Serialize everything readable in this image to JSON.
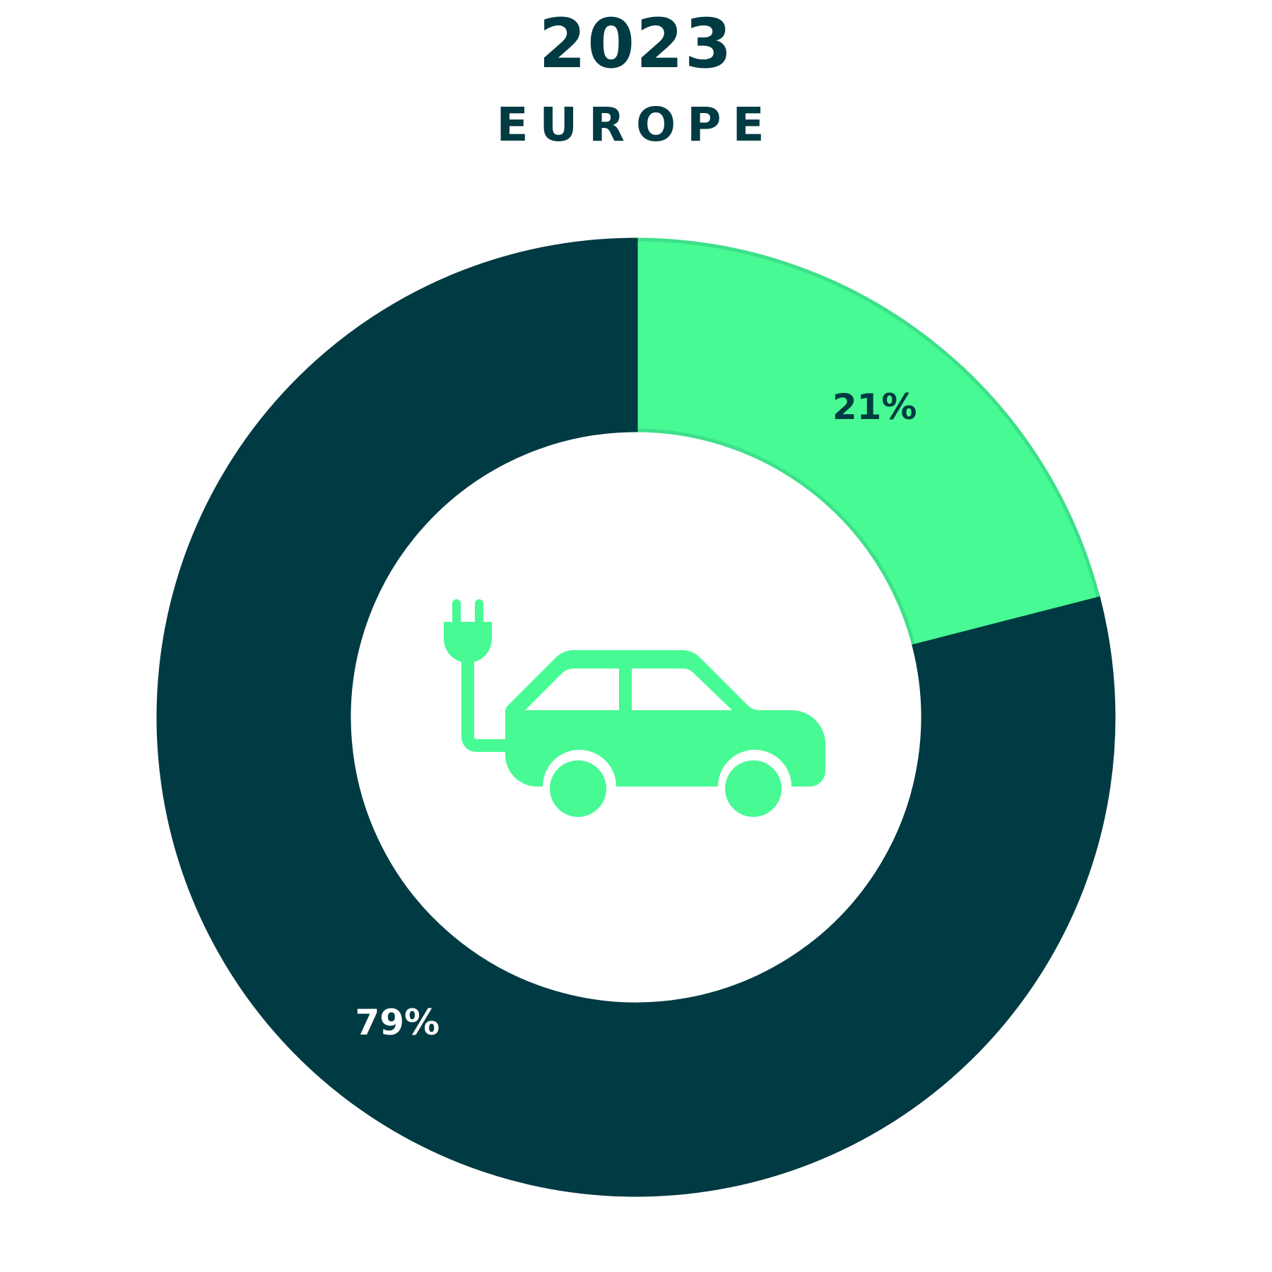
{
  "chart_data": {
    "type": "pie",
    "donut": true,
    "title": "2023",
    "subtitle": "EUROPE",
    "slices": [
      {
        "label": "21%",
        "value": 21,
        "color": "#47fa93",
        "stroke": "#3de08a",
        "label_color": "#003a42"
      },
      {
        "label": "79%",
        "value": 79,
        "color": "#003a42",
        "stroke": "#003a42",
        "label_color": "#ffffff"
      }
    ],
    "start_angle_deg": 0,
    "direction": "clockwise",
    "center_icon": "electric-car-plug-icon",
    "icon_color": "#47fa93"
  }
}
